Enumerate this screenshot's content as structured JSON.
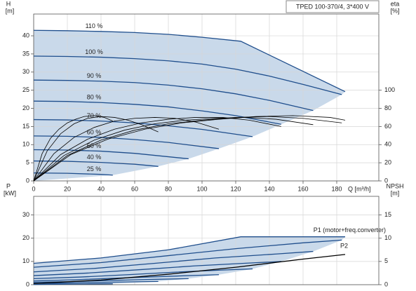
{
  "chart_data": [
    {
      "type": "line",
      "title": "TPED 100-370/4, 3*400 V",
      "ylabel": "H",
      "yunit": "[m]",
      "y2label": "eta",
      "y2unit": "[%]",
      "xlabel": "Q [m³/h]",
      "xlim": [
        0,
        205
      ],
      "xticks": [
        0,
        20,
        40,
        60,
        80,
        100,
        120,
        140,
        160,
        180
      ],
      "ylim": [
        0,
        46
      ],
      "yticks": [
        0,
        5,
        10,
        15,
        20,
        25,
        30,
        35,
        40
      ],
      "y2lim": [
        0,
        184
      ],
      "y2ticks": [
        0,
        20,
        40,
        60,
        80,
        100
      ],
      "grid": true,
      "shade": "#c9d9ea",
      "series": [
        {
          "name": "110 %",
          "color": "#1f4e8c",
          "x": [
            0,
            20,
            40,
            60,
            80,
            100,
            123,
            185
          ],
          "values": [
            41.5,
            41.4,
            41.2,
            40.9,
            40.4,
            39.6,
            38.5,
            24.6
          ]
        },
        {
          "name": "100 %",
          "color": "#1f4e8c",
          "x": [
            0,
            20,
            40,
            60,
            80,
            100,
            120,
            140,
            160,
            183
          ],
          "values": [
            34.4,
            34.3,
            34.1,
            33.7,
            33.1,
            32.2,
            30.8,
            28.9,
            26.6,
            23.8
          ]
        },
        {
          "name": "90 %",
          "color": "#1f4e8c",
          "x": [
            0,
            20,
            40,
            60,
            80,
            100,
            120,
            140,
            166
          ],
          "values": [
            27.8,
            27.7,
            27.5,
            27.1,
            26.4,
            25.4,
            24.0,
            22.2,
            19.4
          ]
        },
        {
          "name": "80 %",
          "color": "#1f4e8c",
          "x": [
            0,
            20,
            40,
            60,
            80,
            100,
            120,
            147
          ],
          "values": [
            22.0,
            21.9,
            21.6,
            21.1,
            20.4,
            19.3,
            18.0,
            15.6
          ]
        },
        {
          "name": "70 %",
          "color": "#1f4e8c",
          "x": [
            0,
            20,
            40,
            60,
            80,
            100,
            130
          ],
          "values": [
            16.9,
            16.8,
            16.5,
            16.0,
            15.2,
            14.2,
            12.2
          ]
        },
        {
          "name": "60 %",
          "color": "#1f4e8c",
          "x": [
            0,
            20,
            40,
            60,
            80,
            110
          ],
          "values": [
            12.4,
            12.3,
            12.0,
            11.4,
            10.6,
            8.9
          ]
        },
        {
          "name": "50 %",
          "color": "#1f4e8c",
          "x": [
            0,
            20,
            40,
            60,
            92
          ],
          "values": [
            8.6,
            8.5,
            8.2,
            7.6,
            6.1
          ]
        },
        {
          "name": "40 %",
          "color": "#1f4e8c",
          "x": [
            0,
            20,
            40,
            60,
            74
          ],
          "values": [
            5.5,
            5.4,
            5.1,
            4.6,
            4.0
          ]
        },
        {
          "name": "25 %",
          "color": "#1f4e8c",
          "x": [
            0,
            20,
            40,
            47
          ],
          "values": [
            2.2,
            2.1,
            1.8,
            1.6
          ]
        },
        {
          "axis": "y2",
          "color": "#000000",
          "x": [
            0,
            22,
            44,
            66,
            88,
            110,
            132,
            154,
            176,
            185
          ],
          "values": [
            0,
            29,
            46,
            57,
            64,
            68,
            71,
            72,
            70,
            67
          ]
        },
        {
          "axis": "y2",
          "color": "#000000",
          "x": [
            0,
            20,
            40,
            60,
            80,
            100,
            120,
            140,
            160,
            183
          ],
          "values": [
            0,
            28,
            45,
            56,
            63,
            67,
            70,
            71,
            69,
            64
          ]
        },
        {
          "axis": "y2",
          "color": "#000000",
          "x": [
            0,
            18,
            36,
            54,
            72,
            90,
            108,
            126,
            144,
            166
          ],
          "values": [
            0,
            28,
            45,
            56,
            63,
            67,
            69,
            70,
            68,
            62
          ]
        },
        {
          "axis": "y2",
          "color": "#000000",
          "x": [
            0,
            16,
            32,
            48,
            64,
            80,
            96,
            112,
            128,
            147
          ],
          "values": [
            0,
            29,
            46,
            57,
            64,
            68,
            70,
            70,
            67,
            60
          ]
        },
        {
          "axis": "y2",
          "color": "#000000",
          "x": [
            0,
            12,
            24,
            36,
            48,
            60,
            72,
            84,
            96,
            110
          ],
          "values": [
            0,
            30,
            48,
            59,
            66,
            69,
            70,
            69,
            65,
            57
          ]
        },
        {
          "axis": "y2",
          "color": "#000000",
          "x": [
            0,
            8,
            16,
            24,
            32,
            40,
            48,
            56,
            64,
            74
          ],
          "values": [
            0,
            33,
            52,
            63,
            69,
            71,
            70,
            67,
            62,
            54
          ]
        },
        {
          "axis": "y2",
          "color": "#000000",
          "x": [
            0,
            5,
            10,
            15,
            20,
            25,
            30,
            36,
            42,
            47
          ],
          "values": [
            0,
            30,
            47,
            57,
            64,
            68,
            71,
            72,
            70,
            66
          ]
        }
      ]
    },
    {
      "type": "line",
      "ylabel": "P",
      "yunit": "[kW]",
      "y2label": "NPSH",
      "y2unit": "[m]",
      "xlim": [
        0,
        205
      ],
      "ylim": [
        0,
        38
      ],
      "yticks": [
        0,
        10,
        20,
        30
      ],
      "y2lim": [
        0,
        19
      ],
      "y2ticks": [
        0,
        5,
        10,
        15
      ],
      "grid": true,
      "shade": "#c9d9ea",
      "series": [
        {
          "name": "P1 (motor+freq.converter)",
          "color": "#1f4e8c",
          "x": [
            0,
            40,
            80,
            123,
            185
          ],
          "values": [
            9.2,
            11.5,
            15.0,
            20.6,
            20.6
          ]
        },
        {
          "color": "#1f4e8c",
          "x": [
            0,
            40,
            80,
            120,
            160,
            183
          ],
          "values": [
            7.5,
            9.5,
            12.5,
            15.5,
            18.0,
            19.2
          ]
        },
        {
          "color": "#1f4e8c",
          "x": [
            0,
            36,
            72,
            108,
            144,
            166
          ],
          "values": [
            5.5,
            7.0,
            9.2,
            11.5,
            13.2,
            14.3
          ]
        },
        {
          "color": "#1f4e8c",
          "x": [
            0,
            32,
            64,
            96,
            128,
            147
          ],
          "values": [
            3.9,
            5.0,
            6.5,
            8.1,
            9.3,
            10.0
          ]
        },
        {
          "color": "#1f4e8c",
          "x": [
            0,
            28,
            56,
            84,
            112,
            130
          ],
          "values": [
            2.6,
            3.3,
            4.3,
            5.4,
            6.3,
            6.8
          ]
        },
        {
          "color": "#1f4e8c",
          "x": [
            0,
            24,
            48,
            72,
            96,
            110
          ],
          "values": [
            1.6,
            2.1,
            2.8,
            3.4,
            4.0,
            4.3
          ]
        },
        {
          "color": "#1f4e8c",
          "x": [
            0,
            20,
            40,
            60,
            92
          ],
          "values": [
            1.0,
            1.3,
            1.7,
            2.1,
            2.6
          ]
        },
        {
          "color": "#1f4e8c",
          "x": [
            0,
            16,
            32,
            48,
            74
          ],
          "values": [
            0.5,
            0.7,
            0.9,
            1.1,
            1.4
          ]
        },
        {
          "color": "#1f4e8c",
          "x": [
            0,
            10,
            20,
            30,
            47
          ],
          "values": [
            0.1,
            0.2,
            0.25,
            0.3,
            0.4
          ]
        },
        {
          "name": "P2",
          "color": "#000000",
          "x": [
            0,
            40,
            80,
            120,
            160,
            185
          ],
          "values": [
            0.5,
            2.0,
            4.5,
            7.5,
            11.0,
            13.0
          ]
        }
      ]
    }
  ]
}
